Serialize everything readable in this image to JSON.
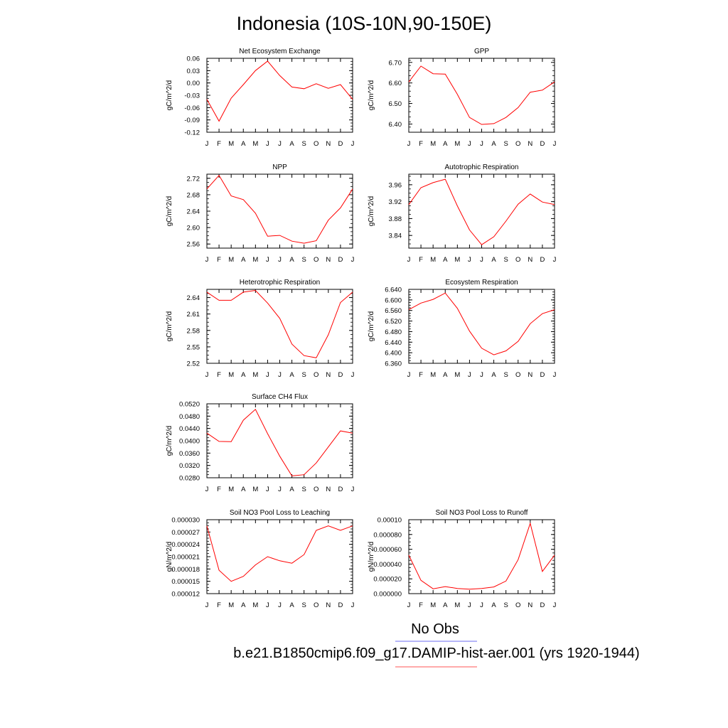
{
  "title": "Indonesia (10S-10N,90-150E)",
  "legend": [
    {
      "label": "No Obs",
      "color": "#6e6ef0"
    },
    {
      "label": "b.e21.B1850cmip6.f09_g17.DAMIP-hist-aer.001 (yrs 1920-1944)",
      "color": "#ff5555"
    }
  ],
  "line_color": "#ff0000",
  "chart_data": [
    {
      "type": "line",
      "title": "Net Ecosystem Exchange",
      "ylabel": "gC/m^2/d",
      "categories": [
        "J",
        "F",
        "M",
        "A",
        "M",
        "J",
        "J",
        "A",
        "S",
        "O",
        "N",
        "D",
        "J"
      ],
      "yticks": [
        "0.06",
        "0.03",
        "0.00",
        "-0.03",
        "-0.06",
        "-0.09",
        "-0.12"
      ],
      "ylim": [
        -0.12,
        0.06
      ],
      "values": [
        -0.04,
        -0.093,
        -0.037,
        -0.004,
        0.03,
        0.053,
        0.018,
        -0.01,
        -0.014,
        -0.002,
        -0.013,
        -0.004,
        -0.04
      ]
    },
    {
      "type": "line",
      "title": "GPP",
      "ylabel": "gC/m^2/d",
      "categories": [
        "J",
        "F",
        "M",
        "A",
        "M",
        "J",
        "J",
        "A",
        "S",
        "O",
        "N",
        "D",
        "J"
      ],
      "yticks": [
        "6.70",
        "6.60",
        "6.50",
        "6.40"
      ],
      "ylim": [
        6.36,
        6.72
      ],
      "values": [
        6.605,
        6.682,
        6.645,
        6.643,
        6.545,
        6.432,
        6.398,
        6.402,
        6.432,
        6.48,
        6.555,
        6.565,
        6.605
      ]
    },
    {
      "type": "line",
      "title": "NPP",
      "ylabel": "gC/m^2/d",
      "categories": [
        "J",
        "F",
        "M",
        "A",
        "M",
        "J",
        "J",
        "A",
        "S",
        "O",
        "N",
        "D",
        "J"
      ],
      "yticks": [
        "2.72",
        "2.68",
        "2.64",
        "2.60",
        "2.56"
      ],
      "ylim": [
        2.55,
        2.73
      ],
      "values": [
        2.694,
        2.727,
        2.677,
        2.668,
        2.635,
        2.579,
        2.581,
        2.567,
        2.562,
        2.568,
        2.618,
        2.648,
        2.694
      ]
    },
    {
      "type": "line",
      "title": "Autotrophic Respiration",
      "ylabel": "gC/m^2/d",
      "categories": [
        "J",
        "F",
        "M",
        "A",
        "M",
        "J",
        "J",
        "A",
        "S",
        "O",
        "N",
        "D",
        "J"
      ],
      "yticks": [
        "3.96",
        "3.92",
        "3.88",
        "3.84"
      ],
      "ylim": [
        3.81,
        3.985
      ],
      "values": [
        3.913,
        3.953,
        3.965,
        3.973,
        3.91,
        3.853,
        3.818,
        3.837,
        3.874,
        3.914,
        3.938,
        3.919,
        3.913
      ]
    },
    {
      "type": "line",
      "title": "Heterotrophic Respiration",
      "ylabel": "gC/m^2/d",
      "categories": [
        "J",
        "F",
        "M",
        "A",
        "M",
        "J",
        "J",
        "A",
        "S",
        "O",
        "N",
        "D",
        "J"
      ],
      "yticks": [
        "2.64",
        "2.61",
        "2.58",
        "2.55",
        "2.52"
      ],
      "ylim": [
        2.52,
        2.655
      ],
      "values": [
        2.65,
        2.635,
        2.635,
        2.65,
        2.653,
        2.63,
        2.602,
        2.555,
        2.534,
        2.53,
        2.572,
        2.631,
        2.65
      ]
    },
    {
      "type": "line",
      "title": "Ecosystem Respiration",
      "ylabel": "gC/m^2/d",
      "categories": [
        "J",
        "F",
        "M",
        "A",
        "M",
        "J",
        "J",
        "A",
        "S",
        "O",
        "N",
        "D",
        "J"
      ],
      "yticks": [
        "6.640",
        "6.600",
        "6.560",
        "6.520",
        "6.480",
        "6.440",
        "6.400",
        "6.360"
      ],
      "ylim": [
        6.36,
        6.64
      ],
      "values": [
        6.563,
        6.588,
        6.602,
        6.626,
        6.568,
        6.482,
        6.417,
        6.392,
        6.407,
        6.443,
        6.51,
        6.548,
        6.563
      ]
    },
    {
      "type": "line",
      "title": "Surface CH4 Flux",
      "ylabel": "gC/m^2/d",
      "categories": [
        "J",
        "F",
        "M",
        "A",
        "M",
        "J",
        "J",
        "A",
        "S",
        "O",
        "N",
        "D",
        "J"
      ],
      "yticks": [
        "0.0520",
        "0.0480",
        "0.0440",
        "0.0400",
        "0.0360",
        "0.0320",
        "0.0280"
      ],
      "ylim": [
        0.028,
        0.052
      ],
      "values": [
        0.0425,
        0.0398,
        0.0397,
        0.0467,
        0.0502,
        0.0423,
        0.035,
        0.0286,
        0.029,
        0.0328,
        0.038,
        0.0432,
        0.0425
      ]
    },
    {
      "type": "line",
      "title": "Soil NO3 Pool Loss to Leaching",
      "ylabel": "gN/m^2/d",
      "categories": [
        "J",
        "F",
        "M",
        "A",
        "M",
        "J",
        "J",
        "A",
        "S",
        "O",
        "N",
        "D",
        "J"
      ],
      "yticks": [
        "0.000030",
        "0.000027",
        "0.000024",
        "0.000021",
        "0.000018",
        "0.000015",
        "0.000012"
      ],
      "ylim": [
        1.2e-05,
        3e-05
      ],
      "values": [
        2.85e-05,
        1.77e-05,
        1.5e-05,
        1.62e-05,
        1.9e-05,
        2.1e-05,
        2e-05,
        1.94e-05,
        2.15e-05,
        2.74e-05,
        2.85e-05,
        2.74e-05,
        2.85e-05
      ]
    },
    {
      "type": "line",
      "title": "Soil NO3 Pool Loss to Runoff",
      "ylabel": "gN/m^2/d",
      "categories": [
        "J",
        "F",
        "M",
        "A",
        "M",
        "J",
        "J",
        "A",
        "S",
        "O",
        "N",
        "D",
        "J"
      ],
      "yticks": [
        "0.00010",
        "0.000080",
        "0.000060",
        "0.000040",
        "0.000020",
        "0.000000"
      ],
      "ylim": [
        0.0,
        0.0001
      ],
      "values": [
        5.2e-05,
        1.8e-05,
        6.5e-06,
        9.5e-06,
        7e-06,
        6e-06,
        7e-06,
        9e-06,
        1.7e-05,
        4.6e-05,
        9.5e-05,
        3e-05,
        5.2e-05
      ]
    }
  ]
}
